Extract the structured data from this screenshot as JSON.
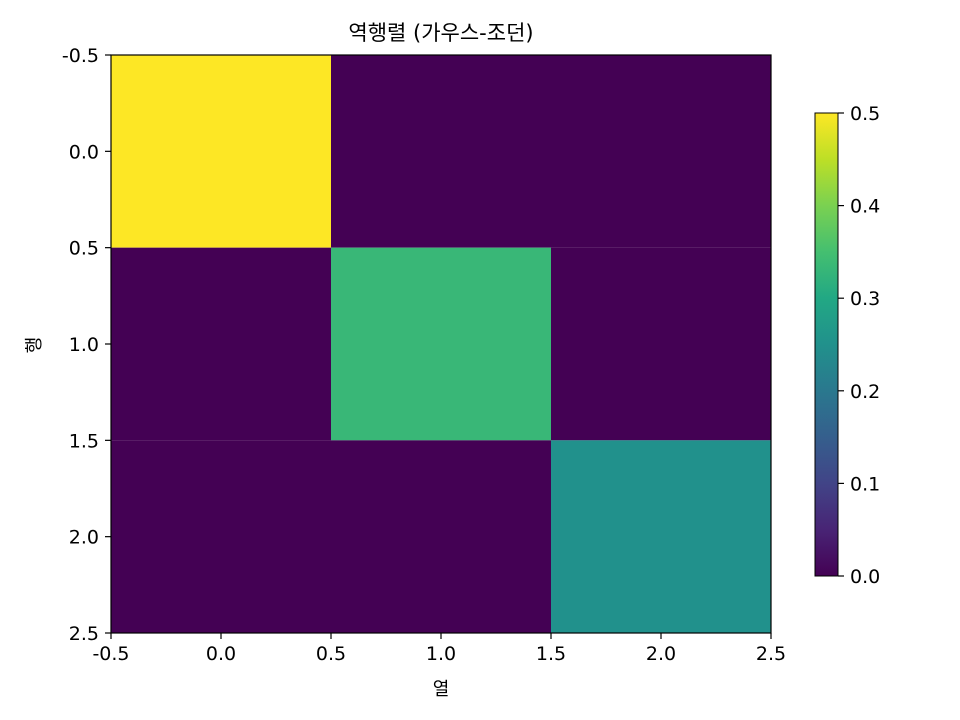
{
  "chart_data": {
    "type": "heatmap",
    "title": "역행렬 (가우스-조던)",
    "xlabel": "열",
    "ylabel": "행",
    "matrix": [
      [
        0.5,
        0.0,
        0.0
      ],
      [
        0.0,
        0.3333,
        0.0
      ],
      [
        0.0,
        0.0,
        0.25
      ]
    ],
    "xlim": [
      -0.5,
      2.5
    ],
    "ylim": [
      2.5,
      -0.5
    ],
    "xticks": [
      "-0.5",
      "0.0",
      "0.5",
      "1.0",
      "1.5",
      "2.0",
      "2.5"
    ],
    "yticks": [
      "-0.5",
      "0.0",
      "0.5",
      "1.0",
      "1.5",
      "2.0",
      "2.5"
    ],
    "colormap": "viridis",
    "colorbar": {
      "range": [
        0.0,
        0.5
      ],
      "ticks": [
        "0.0",
        "0.1",
        "0.2",
        "0.3",
        "0.4",
        "0.5"
      ],
      "position": "right"
    },
    "grid": false
  }
}
